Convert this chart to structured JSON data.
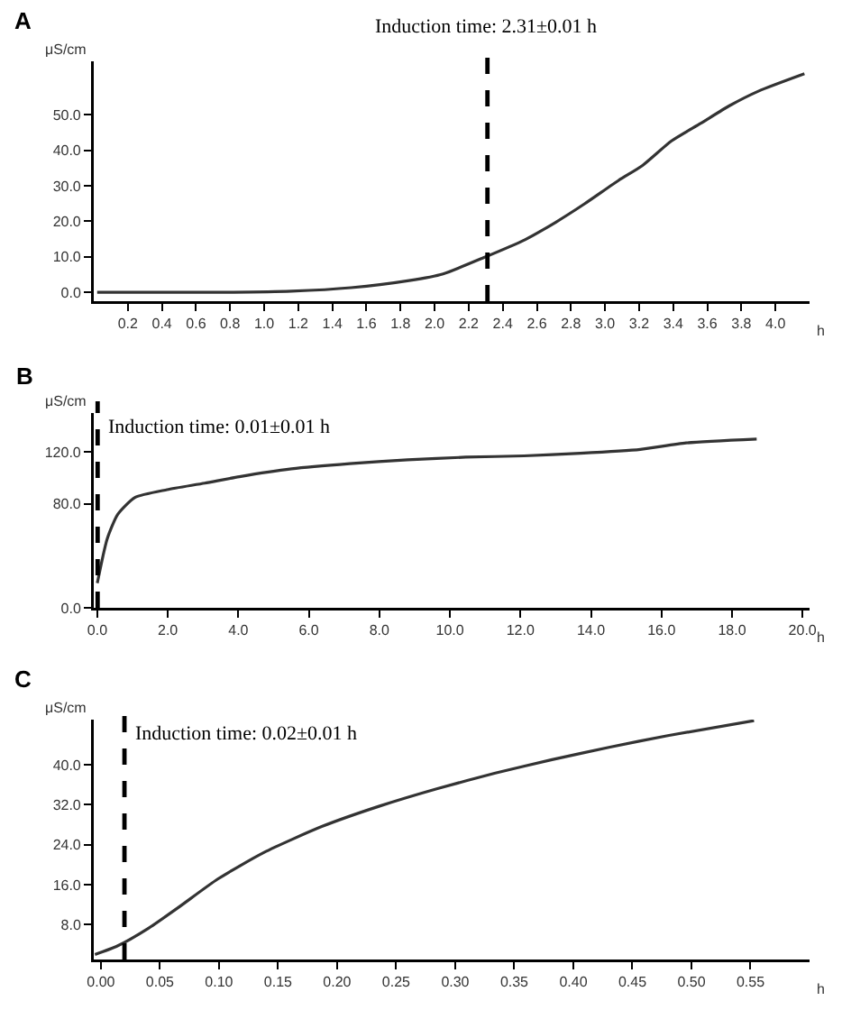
{
  "chart_data": [
    {
      "type": "line",
      "annotations": [
        "A"
      ],
      "xlabel": "h",
      "ylabel": "μS/cm",
      "grid": false,
      "marker": "none",
      "line_style": "solid",
      "xlim": [
        0,
        4.2
      ],
      "xticks": [
        {
          "value": 0.2,
          "label": "0.2"
        },
        {
          "value": 0.4,
          "label": "0.4"
        },
        {
          "value": 0.6,
          "label": "0.6"
        },
        {
          "value": 0.8,
          "label": "0.8"
        },
        {
          "value": 1,
          "label": "1.0"
        },
        {
          "value": 1.2,
          "label": "1.2"
        },
        {
          "value": 1.4,
          "label": "1.4"
        },
        {
          "value": 1.6,
          "label": "1.6"
        },
        {
          "value": 1.8,
          "label": "1.8"
        },
        {
          "value": 2,
          "label": "2.0"
        },
        {
          "value": 2.2,
          "label": "2.2"
        },
        {
          "value": 2.4,
          "label": "2.4"
        },
        {
          "value": 2.6,
          "label": "2.6"
        },
        {
          "value": 2.8,
          "label": "2.8"
        },
        {
          "value": 3,
          "label": "3.0"
        },
        {
          "value": 3.2,
          "label": "3.2"
        },
        {
          "value": 3.4,
          "label": "3.4"
        },
        {
          "value": 3.6,
          "label": "3.6"
        },
        {
          "value": 3.8,
          "label": "3.8"
        },
        {
          "value": 4,
          "label": "4.0"
        }
      ],
      "ylim": [
        -2.5,
        65
      ],
      "yticks": [
        {
          "value": 0,
          "label": "0.0"
        },
        {
          "value": 10,
          "label": "10.0"
        },
        {
          "value": 20,
          "label": "20.0"
        },
        {
          "value": 30,
          "label": "30.0"
        },
        {
          "value": 40,
          "label": "40.0"
        },
        {
          "value": 50,
          "label": "50.0"
        }
      ],
      "ref_lines": [
        {
          "axis": "x",
          "value": 2.31,
          "label": "Induction time: 2.31±0.01 h",
          "color": "#000000",
          "line_style": "dashed"
        }
      ],
      "series": [
        {
          "color": "#333333",
          "x": [
            0.02,
            0.82,
            1.16,
            1.51,
            1.85,
            2.05,
            2.29,
            2.53,
            2.71,
            2.88,
            3.08,
            3.22,
            3.39,
            3.56,
            3.73,
            3.9,
            4.17
          ],
          "values": [
            0,
            0,
            0.3,
            1.3,
            3.3,
            5.2,
            9.8,
            14.8,
            19.7,
            24.9,
            31.5,
            35.7,
            42.6,
            47.5,
            52.5,
            56.6,
            61.5
          ]
        }
      ]
    },
    {
      "type": "line",
      "annotations": [
        "B"
      ],
      "xlabel": "h",
      "ylabel": "μS/cm",
      "grid": false,
      "marker": "none",
      "line_style": "solid",
      "xlim": [
        -0.1,
        20.2
      ],
      "xticks": [
        {
          "value": 0,
          "label": "0.0"
        },
        {
          "value": 2,
          "label": "2.0"
        },
        {
          "value": 4,
          "label": "4.0"
        },
        {
          "value": 6,
          "label": "6.0"
        },
        {
          "value": 8,
          "label": "8.0"
        },
        {
          "value": 10,
          "label": "10.0"
        },
        {
          "value": 12,
          "label": "12.0"
        },
        {
          "value": 14,
          "label": "14.0"
        },
        {
          "value": 16,
          "label": "16.0"
        },
        {
          "value": 18,
          "label": "18.0"
        },
        {
          "value": 20,
          "label": "20.0"
        }
      ],
      "ylim": [
        0,
        150
      ],
      "yticks": [
        {
          "value": 0,
          "label": "0.0"
        },
        {
          "value": 80,
          "label": "80.0"
        },
        {
          "value": 120,
          "label": "120.0"
        }
      ],
      "ref_lines": [
        {
          "axis": "x",
          "value": 0.01,
          "label": "Induction time: 0.01±0.01 h",
          "color": "#000000",
          "line_style": "dashed"
        }
      ],
      "series": [
        {
          "color": "#333333",
          "x": [
            0,
            0.28,
            0.58,
            1.07,
            1.98,
            3.05,
            4.03,
            5.51,
            7.16,
            8.8,
            10.45,
            12.1,
            13.7,
            15.4,
            16.7,
            18.7
          ],
          "values": [
            19,
            53,
            72,
            85,
            91,
            96,
            101,
            107,
            111,
            114,
            116,
            117,
            119,
            122,
            127,
            130
          ]
        }
      ]
    },
    {
      "type": "line",
      "annotations": [
        "C"
      ],
      "xlabel": "h",
      "ylabel": "μS/cm",
      "grid": false,
      "marker": "none",
      "line_style": "solid",
      "xlim": [
        -0.006,
        0.6
      ],
      "xticks": [
        {
          "value": 0,
          "label": "0.00"
        },
        {
          "value": 0.05,
          "label": "0.05"
        },
        {
          "value": 0.1,
          "label": "0.10"
        },
        {
          "value": 0.15,
          "label": "0.15"
        },
        {
          "value": 0.2,
          "label": "0.20"
        },
        {
          "value": 0.25,
          "label": "0.25"
        },
        {
          "value": 0.3,
          "label": "0.30"
        },
        {
          "value": 0.35,
          "label": "0.35"
        },
        {
          "value": 0.4,
          "label": "0.40"
        },
        {
          "value": 0.45,
          "label": "0.45"
        },
        {
          "value": 0.5,
          "label": "0.50"
        },
        {
          "value": 0.55,
          "label": "0.55"
        }
      ],
      "ylim": [
        1,
        49
      ],
      "yticks": [
        {
          "value": 8,
          "label": "8.0"
        },
        {
          "value": 16,
          "label": "16.0"
        },
        {
          "value": 24,
          "label": "24.0"
        },
        {
          "value": 32,
          "label": "32.0"
        },
        {
          "value": 40,
          "label": "40.0"
        }
      ],
      "ref_lines": [
        {
          "axis": "x",
          "value": 0.02,
          "label": "Induction time: 0.02±0.01 h",
          "color": "#000000",
          "line_style": "dashed"
        }
      ],
      "series": [
        {
          "color": "#333333",
          "x": [
            -0.005,
            0.014,
            0.04,
            0.065,
            0.099,
            0.138,
            0.187,
            0.236,
            0.285,
            0.334,
            0.382,
            0.431,
            0.48,
            0.553
          ],
          "values": [
            2,
            3.7,
            7.2,
            11.3,
            17.1,
            22.4,
            27.6,
            31.7,
            35.2,
            38.3,
            41,
            43.5,
            45.8,
            48.8
          ]
        }
      ]
    }
  ]
}
